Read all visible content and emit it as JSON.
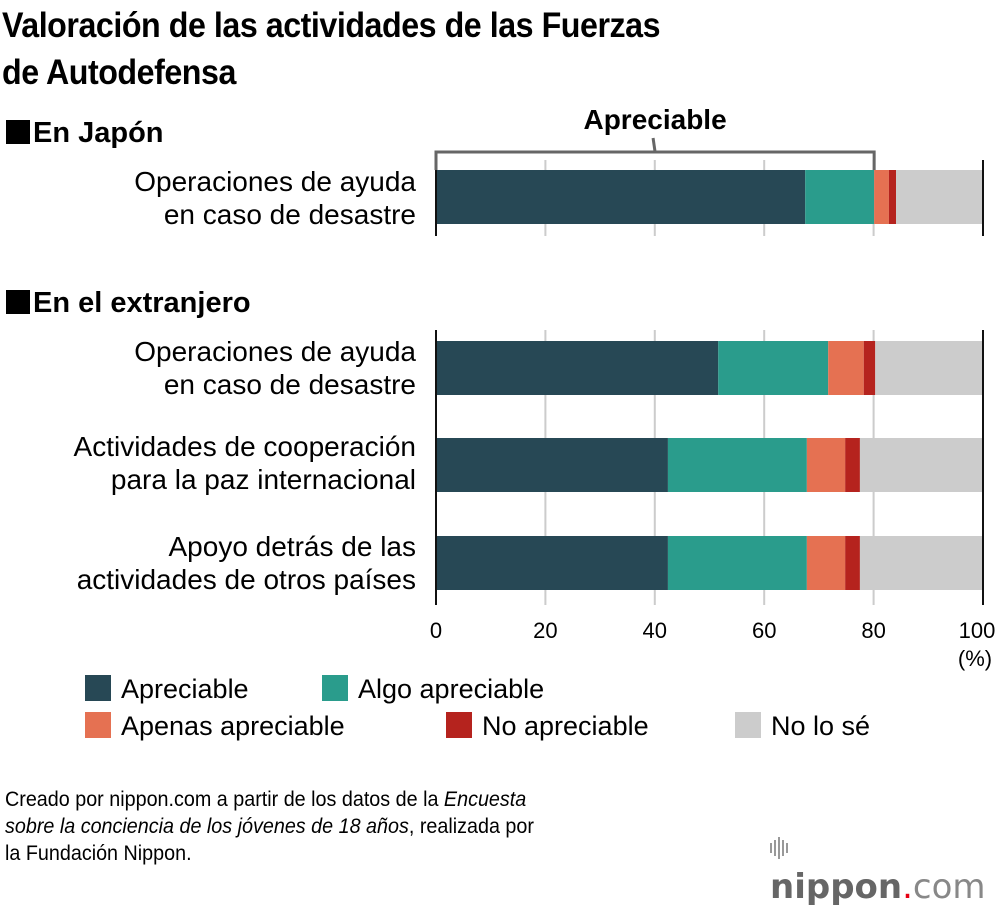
{
  "chart_data": {
    "type": "bar",
    "orientation": "horizontal",
    "stacked": true,
    "title": "Valoración de las actividades de las Fuerzas de Autodefensa",
    "xlabel": "(%)",
    "ylabel": "",
    "xlim": [
      0,
      100
    ],
    "x_ticks": [
      "0",
      "20",
      "40",
      "60",
      "80",
      "100"
    ],
    "grid": true,
    "legend_position": "bottom",
    "groups": [
      {
        "name": "En Japón",
        "categories": [
          {
            "label_lines": [
              "Operaciones de ayuda",
              "en caso de desastre"
            ],
            "values": [
              67.5,
              12.6,
              2.7,
              1.3,
              15.9
            ]
          }
        ]
      },
      {
        "name": "En el extranjero",
        "categories": [
          {
            "label_lines": [
              "Operaciones de ayuda",
              "en caso de desastre"
            ],
            "values": [
              51.6,
              20.1,
              6.5,
              2.1,
              19.7
            ]
          },
          {
            "label_lines": [
              "Actividades de cooperación",
              "para la paz internacional"
            ],
            "values": [
              42.4,
              25.4,
              7.0,
              2.7,
              22.5
            ]
          },
          {
            "label_lines": [
              "Apoyo detrás de las",
              "actividades de otros países"
            ],
            "values": [
              42.4,
              25.4,
              7.0,
              2.7,
              22.5
            ]
          }
        ]
      }
    ],
    "series": [
      {
        "name": "Apreciable",
        "color": "#274855"
      },
      {
        "name": "Algo apreciable",
        "color": "#2a9c8c"
      },
      {
        "name": "Apenas apreciable",
        "color": "#e57152"
      },
      {
        "name": "No apreciable",
        "color": "#b5231e"
      },
      {
        "name": "No lo sé",
        "color": "#cccccc"
      }
    ],
    "annotation": {
      "text": "Apreciable",
      "spans_from": 0,
      "spans_to": 80.1
    }
  },
  "header": {
    "title_line1": "Valoración de las actividades de las Fuerzas",
    "title_line2": "de Autodefensa"
  },
  "source": {
    "part1": "Creado por nippon.com a partir de los datos de la ",
    "italic1": "Encuesta",
    "italic2": "sobre la conciencia de los jóvenes de 18 años",
    "part2": ", realizada por",
    "part3": "la Fundación Nippon."
  },
  "logo": {
    "name": "nippon",
    "dot": ".",
    "tld": "com"
  }
}
